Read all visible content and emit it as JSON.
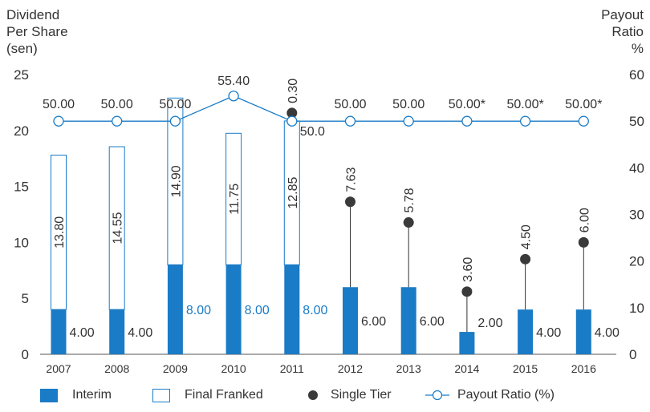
{
  "axis_titles": {
    "left": [
      "Dividend",
      "Per Share",
      "(sen)"
    ],
    "right": [
      "Payout",
      "Ratio",
      "%"
    ]
  },
  "colors": {
    "interim": "#1a7bc6",
    "final_border": "#1a7bc6",
    "single_tier": "#3a3a3a",
    "payout_line": "#1a7bc6",
    "text": "#333333",
    "interim_label_highlight": "#1a7bc6"
  },
  "legend": {
    "interim": "Interim",
    "final": "Final Franked",
    "single": "Single Tier",
    "payout": "Payout Ratio (%)"
  },
  "chart_data": {
    "type": "bar",
    "categories": [
      "2007",
      "2008",
      "2009",
      "2010",
      "2011",
      "2012",
      "2013",
      "2014",
      "2015",
      "2016"
    ],
    "y_left": {
      "label": "Dividend Per Share (sen)",
      "ylim": [
        0,
        25
      ],
      "ticks": [
        "0",
        "5",
        "10",
        "15",
        "20",
        "25"
      ]
    },
    "y_right": {
      "label": "Payout Ratio %",
      "ylim": [
        0,
        60
      ],
      "ticks": [
        "0",
        "10",
        "20",
        "30",
        "40",
        "50",
        "60"
      ]
    },
    "series": [
      {
        "name": "Interim",
        "kind": "stacked-bar",
        "values": [
          4.0,
          4.0,
          8.0,
          8.0,
          8.0,
          6.0,
          6.0,
          2.0,
          4.0,
          4.0
        ],
        "labels": [
          "4.00",
          "4.00",
          "8.00",
          "8.00",
          "8.00",
          "6.00",
          "6.00",
          "2.00",
          "4.00",
          "4.00"
        ]
      },
      {
        "name": "Final Franked",
        "kind": "stacked-bar",
        "values": [
          13.8,
          14.55,
          14.9,
          11.75,
          12.85,
          null,
          null,
          null,
          null,
          null
        ],
        "labels": [
          "13.80",
          "14.55",
          "14.90",
          "11.75",
          "12.85",
          "",
          "",
          "",
          "",
          ""
        ]
      },
      {
        "name": "Single Tier",
        "kind": "lollipop",
        "values": [
          null,
          null,
          null,
          null,
          0.3,
          7.63,
          5.78,
          3.6,
          4.5,
          6.0
        ],
        "labels": [
          "",
          "",
          "",
          "",
          "0.30",
          "7.63",
          "5.78",
          "3.60",
          "4.50",
          "6.00"
        ]
      },
      {
        "name": "Payout Ratio (%)",
        "kind": "line",
        "axis": "right",
        "values": [
          50.0,
          50.0,
          50.0,
          55.4,
          50.0,
          50.0,
          50.0,
          50.0,
          50.0,
          50.0
        ],
        "labels": [
          "50.00",
          "50.00",
          "50.00",
          "55.40",
          "50.0",
          "50.00",
          "50.00",
          "50.00*",
          "50.00*",
          "50.00*"
        ]
      }
    ],
    "grid": false,
    "legend_position": "bottom"
  }
}
